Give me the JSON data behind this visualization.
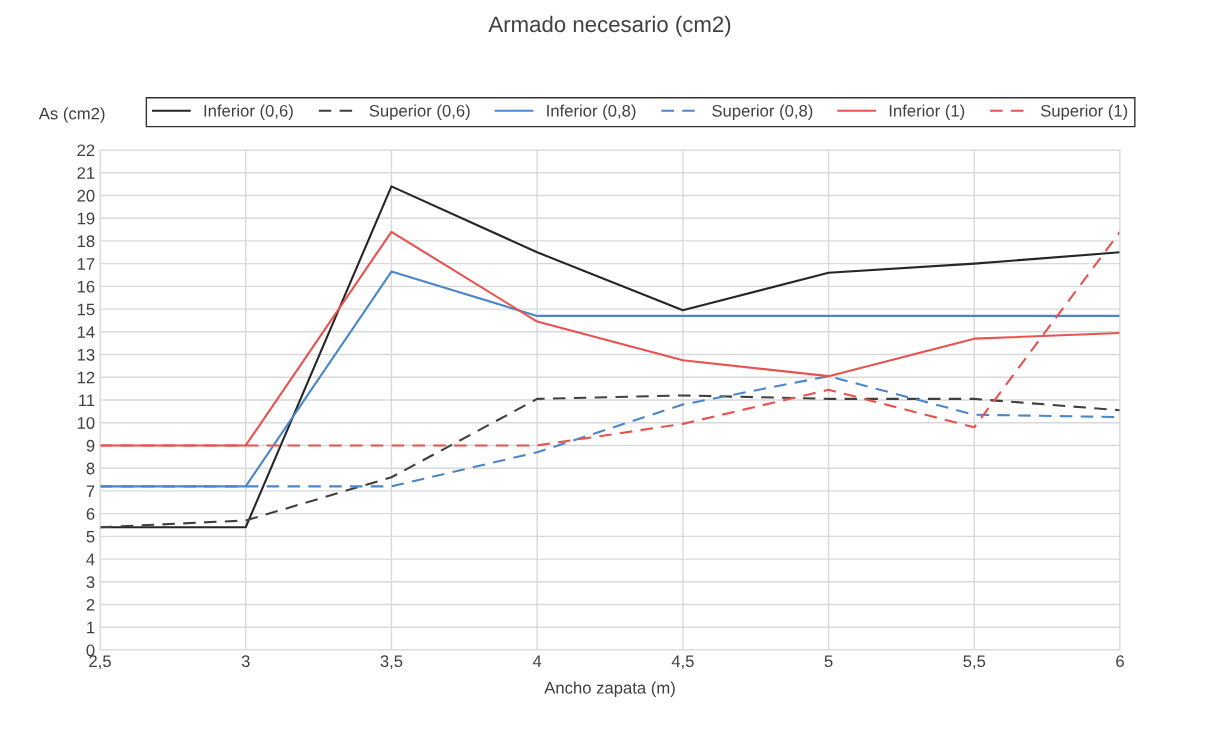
{
  "chart_data": {
    "type": "line",
    "title": "Armado necesario (cm2)",
    "xlabel": "Ancho zapata (m)",
    "ylabel": "As (cm2)",
    "x": [
      2.5,
      3,
      3.5,
      4,
      4.5,
      5,
      5.5,
      6
    ],
    "xlim": [
      2.5,
      6
    ],
    "xticks": [
      {
        "value": 2.5,
        "label": "2,5"
      },
      3,
      {
        "value": 3.5,
        "label": "3,5"
      },
      4,
      {
        "value": 4.5,
        "label": "4,5"
      },
      5,
      {
        "value": 5.5,
        "label": "5,5"
      },
      6
    ],
    "ylim": [
      0,
      22
    ],
    "yticks": [
      0,
      1,
      2,
      3,
      4,
      5,
      6,
      7,
      8,
      9,
      10,
      11,
      12,
      13,
      14,
      15,
      16,
      17,
      18,
      19,
      20,
      21,
      22
    ],
    "grid": true,
    "legend": "top",
    "marker": "none",
    "series": [
      {
        "name": "Inferior (0,6)",
        "color": "#262626",
        "line_style": "solid",
        "values": [
          5.4,
          5.4,
          20.4,
          17.5,
          14.95,
          16.6,
          17.0,
          17.5
        ]
      },
      {
        "name": "Superior (0,6)",
        "color": "#404040",
        "line_style": "dashed",
        "values": [
          5.4,
          5.7,
          7.6,
          11.05,
          11.2,
          11.05,
          11.05,
          10.55
        ]
      },
      {
        "name": "Inferior (0,8)",
        "color": "#4a86c8",
        "line_style": "solid",
        "values": [
          7.2,
          7.2,
          16.65,
          14.7,
          14.7,
          14.7,
          14.7,
          14.7
        ]
      },
      {
        "name": "Superior (0,8)",
        "color": "#4a86c8",
        "line_style": "dashed",
        "values": [
          7.2,
          7.2,
          7.2,
          8.7,
          10.8,
          12.05,
          10.35,
          10.25
        ]
      },
      {
        "name": "Inferior (1)",
        "color": "#e8524f",
        "line_style": "solid",
        "values": [
          9,
          9,
          18.4,
          14.45,
          12.75,
          12.05,
          13.7,
          13.95
        ]
      },
      {
        "name": "Superior (1)",
        "color": "#e8524f",
        "line_style": "dashed",
        "values": [
          9,
          9,
          9,
          9,
          9.95,
          11.45,
          9.8,
          18.4
        ]
      }
    ]
  }
}
